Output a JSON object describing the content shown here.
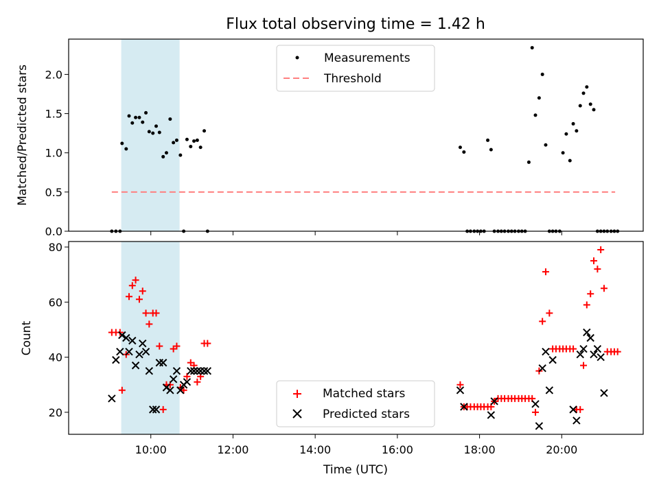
{
  "chart_data": [
    {
      "type": "scatter",
      "title": "Flux total observing time = 1.42 h",
      "xlabel": "",
      "ylabel": "Matched/Predicted stars",
      "xlim": [
        8.0,
        21.983
      ],
      "ylim": [
        0.0,
        2.45
      ],
      "yticks": [
        0.0,
        0.5,
        1.0,
        1.5,
        2.0
      ],
      "ytick_labels": [
        "0.0",
        "0.5",
        "1.0",
        "1.5",
        "2.0"
      ],
      "xticks": [
        10,
        12,
        14,
        16,
        18,
        20
      ],
      "shaded_span": [
        9.28,
        10.7
      ],
      "threshold": {
        "value": 0.5,
        "x_range": [
          9.05,
          21.3
        ],
        "label": "Threshold",
        "color": "#ff7f7f"
      },
      "legend": {
        "position": "top-center",
        "entries": [
          "Measurements",
          "Threshold"
        ]
      },
      "series": [
        {
          "name": "Measurements",
          "color": "#000000",
          "x": [
            9.05,
            9.15,
            9.25,
            9.3,
            9.4,
            9.47,
            9.55,
            9.63,
            9.72,
            9.8,
            9.88,
            9.96,
            10.05,
            10.13,
            10.21,
            10.3,
            10.38,
            10.47,
            10.55,
            10.63,
            10.72,
            10.8,
            10.88,
            10.97,
            11.05,
            11.13,
            11.21,
            11.3,
            11.38,
            17.53,
            17.62,
            17.7,
            17.78,
            17.87,
            17.95,
            18.03,
            18.11,
            18.2,
            18.28,
            18.36,
            18.45,
            18.53,
            18.61,
            18.7,
            18.78,
            18.86,
            18.95,
            19.03,
            19.11,
            19.2,
            19.28,
            19.36,
            19.45,
            19.53,
            19.61,
            19.7,
            19.78,
            19.86,
            19.95,
            20.03,
            20.11,
            20.2,
            20.28,
            20.36,
            20.45,
            20.53,
            20.61,
            20.7,
            20.78,
            20.87,
            20.95,
            21.03,
            21.11,
            21.2,
            21.28,
            21.36
          ],
          "values": [
            0,
            0,
            0,
            1.12,
            1.05,
            1.47,
            1.38,
            1.45,
            1.45,
            1.39,
            1.51,
            1.27,
            1.25,
            1.34,
            1.26,
            0.95,
            1.0,
            1.43,
            1.13,
            1.16,
            0.97,
            0,
            1.17,
            1.08,
            1.15,
            1.16,
            1.07,
            1.28,
            0,
            1.07,
            1.01,
            0,
            0,
            0,
            0,
            0,
            0,
            1.16,
            1.04,
            0,
            0,
            0,
            0,
            0,
            0,
            0,
            0,
            0,
            0,
            0.88,
            2.34,
            1.48,
            1.7,
            2.0,
            1.1,
            0,
            0,
            0,
            0,
            1.0,
            1.24,
            0.9,
            1.37,
            1.28,
            1.6,
            1.76,
            1.84,
            1.62,
            1.55,
            0,
            0,
            0,
            0,
            0,
            0,
            0
          ]
        }
      ]
    },
    {
      "type": "scatter",
      "title": "",
      "xlabel": "Time (UTC)",
      "ylabel": "Count",
      "xlim": [
        8.0,
        21.983
      ],
      "ylim": [
        12.0,
        82.0
      ],
      "yticks": [
        20,
        40,
        60,
        80
      ],
      "ytick_labels": [
        "20",
        "40",
        "60",
        "80"
      ],
      "xticks": [
        10,
        12,
        14,
        16,
        18,
        20
      ],
      "xtick_labels": [
        "10:00",
        "12:00",
        "14:00",
        "16:00",
        "18:00",
        "20:00"
      ],
      "shaded_span": [
        9.28,
        10.7
      ],
      "legend": {
        "position": "lower-center",
        "entries": [
          "Matched stars",
          "Predicted stars"
        ]
      },
      "series": [
        {
          "name": "Matched stars",
          "marker": "plus",
          "color": "#ff0000",
          "x": [
            9.05,
            9.15,
            9.25,
            9.3,
            9.4,
            9.47,
            9.55,
            9.63,
            9.72,
            9.8,
            9.88,
            9.96,
            10.05,
            10.13,
            10.21,
            10.3,
            10.38,
            10.47,
            10.55,
            10.63,
            10.72,
            10.8,
            10.88,
            10.97,
            11.05,
            11.13,
            11.21,
            11.3,
            11.38,
            17.53,
            17.62,
            17.7,
            17.78,
            17.87,
            17.95,
            18.03,
            18.11,
            18.2,
            18.28,
            18.36,
            18.45,
            18.53,
            18.61,
            18.7,
            18.78,
            18.86,
            18.95,
            19.03,
            19.11,
            19.2,
            19.28,
            19.36,
            19.45,
            19.53,
            19.61,
            19.7,
            19.78,
            19.86,
            19.95,
            20.03,
            20.11,
            20.2,
            20.28,
            20.36,
            20.45,
            20.53,
            20.61,
            20.7,
            20.78,
            20.87,
            20.95,
            21.03,
            21.11,
            21.2,
            21.28,
            21.36
          ],
          "values": [
            49,
            49,
            49,
            28,
            41,
            62,
            66,
            68,
            61,
            64,
            56,
            52,
            56,
            56,
            44,
            21,
            30,
            30,
            43,
            44,
            29,
            28,
            33,
            38,
            37,
            31,
            33,
            45,
            45,
            30,
            22,
            22,
            22,
            22,
            22,
            22,
            22,
            22,
            22,
            24,
            25,
            25,
            25,
            25,
            25,
            25,
            25,
            25,
            25,
            25,
            25,
            20,
            35,
            53,
            71,
            56,
            43,
            43,
            43,
            43,
            43,
            43,
            43,
            21,
            21,
            37,
            59,
            63,
            75,
            72,
            79,
            65,
            42,
            42,
            42,
            42
          ]
        },
        {
          "name": "Predicted stars",
          "marker": "x",
          "color": "#000000",
          "x": [
            9.05,
            9.15,
            9.25,
            9.3,
            9.4,
            9.47,
            9.55,
            9.63,
            9.72,
            9.8,
            9.88,
            9.96,
            10.05,
            10.13,
            10.21,
            10.3,
            10.38,
            10.47,
            10.55,
            10.63,
            10.72,
            10.8,
            10.88,
            10.97,
            11.05,
            11.13,
            11.21,
            11.3,
            11.38,
            17.53,
            17.62,
            18.28,
            18.36,
            19.36,
            19.45,
            19.53,
            19.61,
            19.7,
            19.78,
            20.28,
            20.36,
            20.45,
            20.53,
            20.61,
            20.7,
            20.78,
            20.87,
            20.95,
            21.03
          ],
          "values": [
            25,
            39,
            42,
            48,
            47,
            42,
            46,
            37,
            41,
            45,
            42,
            35,
            21,
            21,
            38,
            38,
            29,
            28,
            32,
            35,
            28,
            30,
            31,
            35,
            35,
            35,
            35,
            35,
            35,
            28,
            22,
            19,
            24,
            23,
            15,
            36,
            42,
            28,
            39,
            21,
            17,
            41,
            43,
            49,
            47,
            41,
            43,
            40,
            27
          ]
        }
      ]
    }
  ]
}
